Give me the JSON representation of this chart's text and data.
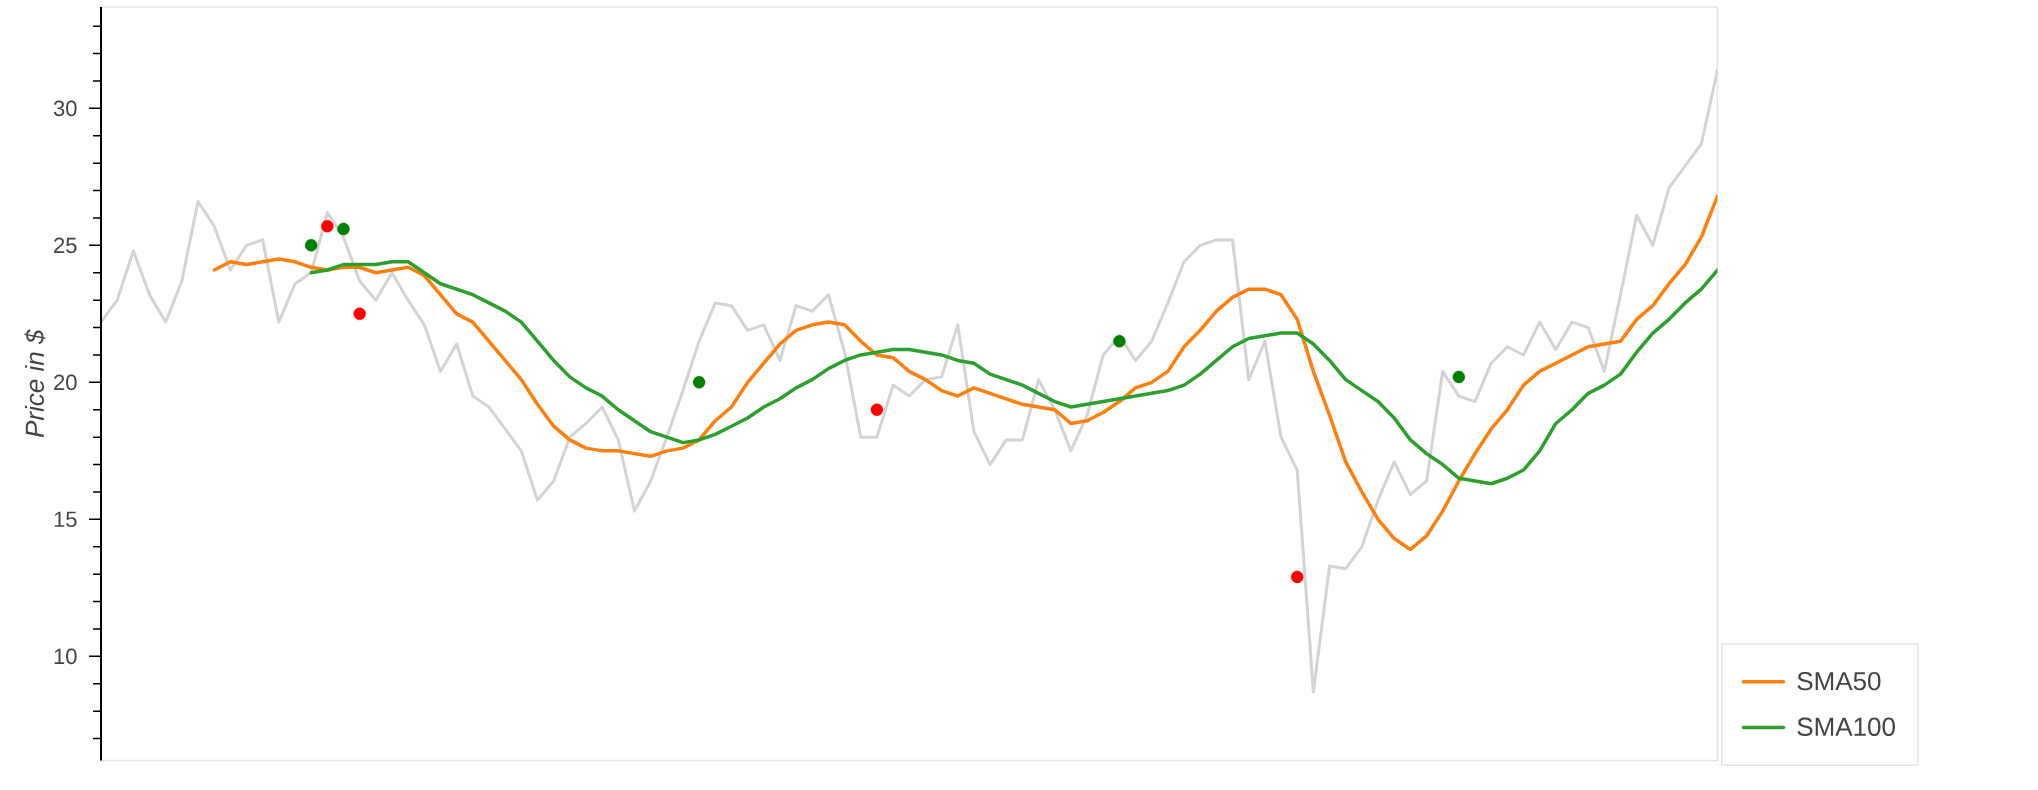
{
  "chart_data": {
    "type": "line",
    "ylabel": "Price in $",
    "categories": [
      null,
      null,
      null,
      null,
      null,
      null,
      null,
      null,
      null,
      null,
      null,
      null,
      null,
      null,
      null,
      null,
      null,
      null,
      null,
      null,
      null,
      null,
      null,
      null,
      null,
      null,
      null,
      null,
      null,
      null,
      null,
      null,
      null,
      null,
      null,
      null,
      null,
      null,
      null,
      null,
      null,
      null,
      null,
      null,
      null,
      null,
      null,
      null,
      null,
      null,
      null,
      null,
      null,
      null,
      null,
      null,
      null,
      null,
      null,
      null,
      null,
      null,
      null,
      null,
      null,
      null,
      null,
      null,
      null,
      null,
      null,
      null,
      null,
      null,
      null,
      null,
      null,
      null,
      null,
      null,
      null,
      null,
      null,
      null,
      null,
      null,
      null,
      null,
      null,
      null,
      null,
      null,
      null,
      null,
      null,
      null,
      null,
      null,
      null,
      null,
      null
    ],
    "series": [
      {
        "color": "#d3d3d3",
        "values": [
          22.2,
          23.0,
          24.8,
          23.2,
          22.2,
          23.7,
          26.6,
          25.7,
          24.1,
          25.0,
          25.2,
          22.2,
          23.6,
          24.0,
          26.2,
          25.3,
          23.7,
          23.0,
          24.0,
          23.0,
          22.1,
          20.4,
          21.4,
          19.5,
          19.1,
          18.3,
          17.5,
          15.7,
          16.4,
          18.0,
          18.5,
          19.1,
          17.9,
          15.3,
          16.4,
          18.0,
          19.7,
          21.5,
          22.9,
          22.8,
          21.9,
          22.1,
          20.8,
          22.8,
          22.6,
          23.2,
          21.1,
          18.0,
          18.0,
          19.9,
          19.5,
          20.1,
          20.2,
          22.1,
          18.2,
          17.0,
          17.9,
          17.9,
          20.1,
          19.0,
          17.5,
          18.8,
          21.0,
          21.7,
          20.8,
          21.5,
          22.9,
          24.4,
          25.0,
          25.2,
          25.2,
          20.1,
          21.5,
          18.0,
          16.8,
          8.7,
          13.3,
          13.2,
          14.0,
          15.7,
          17.1,
          15.9,
          16.4,
          20.4,
          19.5,
          19.3,
          20.7,
          21.3,
          21.0,
          22.2,
          21.2,
          22.2,
          22.0,
          20.4,
          23.2,
          26.1,
          25.0,
          27.1,
          27.9,
          28.7,
          31.4
        ]
      },
      {
        "name": "SMA50",
        "color": "#ff7f0e",
        "values": [
          null,
          null,
          null,
          null,
          null,
          null,
          null,
          24.1,
          24.4,
          24.3,
          24.4,
          24.5,
          24.4,
          24.2,
          24.1,
          24.2,
          24.2,
          24.0,
          24.1,
          24.2,
          23.9,
          23.2,
          22.5,
          22.2,
          21.5,
          20.8,
          20.1,
          19.2,
          18.4,
          17.9,
          17.6,
          17.5,
          17.5,
          17.4,
          17.3,
          17.5,
          17.6,
          17.9,
          18.6,
          19.1,
          20.0,
          20.7,
          21.4,
          21.9,
          22.1,
          22.2,
          22.1,
          21.5,
          21.0,
          20.9,
          20.4,
          20.1,
          19.7,
          19.5,
          19.8,
          19.6,
          19.4,
          19.2,
          19.1,
          19.0,
          18.5,
          18.6,
          18.9,
          19.3,
          19.8,
          20.0,
          20.4,
          21.3,
          21.9,
          22.6,
          23.1,
          23.4,
          23.4,
          23.2,
          22.3,
          20.4,
          18.8,
          17.1,
          16.0,
          15.0,
          14.3,
          13.9,
          14.4,
          15.3,
          16.4,
          17.4,
          18.3,
          19.0,
          19.9,
          20.4,
          20.7,
          21.0,
          21.3,
          21.4,
          21.5,
          22.3,
          22.8,
          23.6,
          24.3,
          25.3,
          26.8
        ]
      },
      {
        "name": "SMA100",
        "color": "#2ca02c",
        "values": [
          null,
          null,
          null,
          null,
          null,
          null,
          null,
          null,
          null,
          null,
          null,
          null,
          null,
          24.0,
          24.1,
          24.3,
          24.3,
          24.3,
          24.4,
          24.4,
          24.0,
          23.6,
          23.4,
          23.2,
          22.9,
          22.6,
          22.2,
          21.5,
          20.8,
          20.2,
          19.8,
          19.5,
          19.0,
          18.6,
          18.2,
          18.0,
          17.8,
          17.9,
          18.1,
          18.4,
          18.7,
          19.1,
          19.4,
          19.8,
          20.1,
          20.5,
          20.8,
          21.0,
          21.1,
          21.2,
          21.2,
          21.1,
          21.0,
          20.8,
          20.7,
          20.3,
          20.1,
          19.9,
          19.6,
          19.3,
          19.1,
          19.2,
          19.3,
          19.4,
          19.5,
          19.6,
          19.7,
          19.9,
          20.3,
          20.8,
          21.3,
          21.6,
          21.7,
          21.8,
          21.8,
          21.4,
          20.8,
          20.1,
          19.7,
          19.3,
          18.7,
          17.9,
          17.4,
          17.0,
          16.5,
          16.4,
          16.3,
          16.5,
          16.8,
          17.5,
          18.5,
          19.0,
          19.6,
          19.9,
          20.3,
          21.1,
          21.8,
          22.3,
          22.9,
          23.4,
          24.1
        ]
      },
      {
        "type": "scatter",
        "marker": "circle",
        "color": "#008000",
        "values": [
          null,
          null,
          null,
          null,
          null,
          null,
          null,
          null,
          null,
          null,
          null,
          null,
          null,
          25.0,
          null,
          25.6,
          null,
          null,
          null,
          null,
          null,
          null,
          null,
          null,
          null,
          null,
          null,
          null,
          null,
          null,
          null,
          null,
          null,
          null,
          null,
          null,
          null,
          20.0,
          null,
          null,
          null,
          null,
          null,
          null,
          null,
          null,
          null,
          null,
          null,
          null,
          null,
          null,
          null,
          null,
          null,
          null,
          null,
          null,
          null,
          null,
          null,
          null,
          null,
          21.5,
          null,
          null,
          null,
          null,
          null,
          null,
          null,
          null,
          null,
          null,
          null,
          null,
          null,
          null,
          null,
          null,
          null,
          null,
          null,
          null,
          20.2,
          null,
          null,
          null,
          null,
          null,
          null,
          null,
          null,
          null,
          null,
          null,
          null,
          null,
          null,
          null,
          null
        ]
      },
      {
        "type": "scatter",
        "marker": "circle",
        "color": "#ff0000",
        "values": [
          null,
          null,
          null,
          null,
          null,
          null,
          null,
          null,
          null,
          null,
          null,
          null,
          null,
          null,
          25.7,
          null,
          22.5,
          null,
          null,
          null,
          null,
          null,
          null,
          null,
          null,
          null,
          null,
          null,
          null,
          null,
          null,
          null,
          null,
          null,
          null,
          null,
          null,
          null,
          null,
          null,
          null,
          null,
          null,
          null,
          null,
          null,
          null,
          null,
          19.0,
          null,
          null,
          null,
          null,
          null,
          null,
          null,
          null,
          null,
          null,
          null,
          null,
          null,
          null,
          null,
          null,
          null,
          null,
          null,
          null,
          null,
          null,
          null,
          null,
          null,
          12.9,
          null,
          null,
          null,
          null,
          null,
          null,
          null,
          null,
          null,
          null,
          null,
          null,
          null,
          null,
          null,
          null,
          null,
          null,
          null,
          null,
          null,
          null,
          null,
          null,
          null,
          null
        ]
      }
    ],
    "ylim": [
      6.2,
      33.7
    ],
    "yticks": [
      {
        "value": 7,
        "label": null
      },
      {
        "value": 8,
        "label": null
      },
      {
        "value": 9,
        "label": null
      },
      10,
      {
        "value": 11,
        "label": null
      },
      {
        "value": 12,
        "label": null
      },
      {
        "value": 13,
        "label": null
      },
      {
        "value": 14,
        "label": null
      },
      15,
      {
        "value": 16,
        "label": null
      },
      {
        "value": 17,
        "label": null
      },
      {
        "value": 18,
        "label": null
      },
      {
        "value": 19,
        "label": null
      },
      20,
      {
        "value": 21,
        "label": null
      },
      {
        "value": 22,
        "label": null
      },
      {
        "value": 23,
        "label": null
      },
      {
        "value": 24,
        "label": null
      },
      25,
      {
        "value": 26,
        "label": null
      },
      {
        "value": 27,
        "label": null
      },
      {
        "value": 28,
        "label": null
      },
      {
        "value": 29,
        "label": null
      },
      30,
      {
        "value": 31,
        "label": null
      },
      {
        "value": 32,
        "label": null
      },
      {
        "value": 33,
        "label": null
      }
    ],
    "tick_labels": "y",
    "legend": "bottom right"
  }
}
